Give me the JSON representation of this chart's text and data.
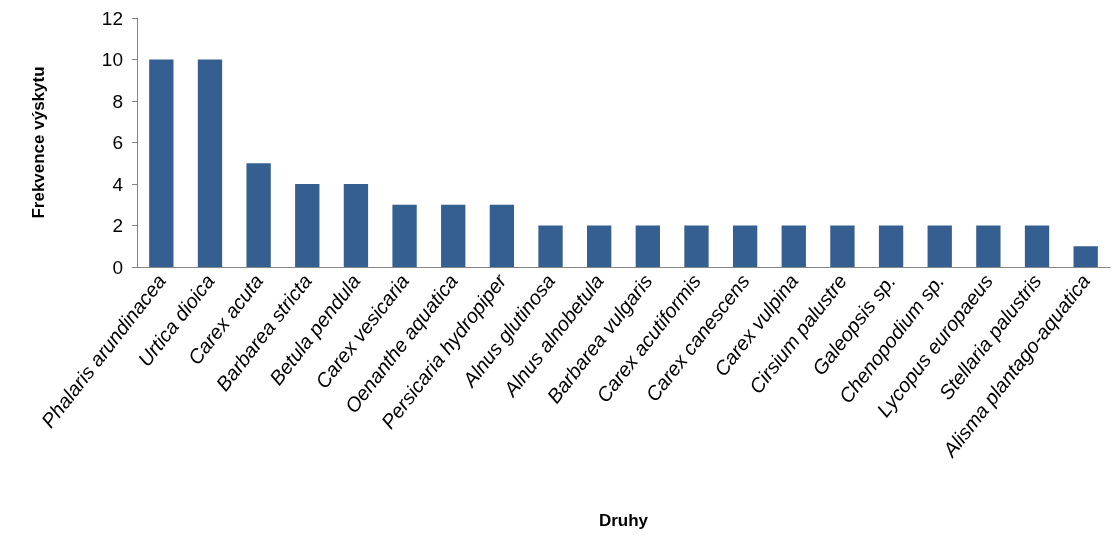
{
  "chart_data": {
    "type": "bar",
    "xlabel": "Druhy",
    "ylabel": "Frekvence výskytu",
    "categories": [
      "Phalaris arundinacea",
      "Urtica dioica",
      "Carex acuta",
      "Barbarea stricta",
      "Betula pendula",
      "Carex vesicaria",
      "Oenanthe aquatica",
      "Persicaria hydropiper",
      "Alnus glutinosa",
      "Alnus alnobetula",
      "Barbarea vulgaris",
      "Carex acutiformis",
      "Carex canescens",
      "Carex vulpina",
      "Cirsium palustre",
      "Galeopsis sp.",
      "Chenopodium sp.",
      "Lycopus europaeus",
      "Stellaria palustris",
      "Alisma plantago-aquatica"
    ],
    "values": [
      10,
      10,
      5,
      4,
      4,
      3,
      3,
      3,
      2,
      2,
      2,
      2,
      2,
      2,
      2,
      2,
      2,
      2,
      2,
      1
    ],
    "color": "#355e91",
    "ylim": [
      0,
      12
    ],
    "yticks": [
      0,
      2,
      4,
      6,
      8,
      10,
      12
    ],
    "grid": false
  }
}
